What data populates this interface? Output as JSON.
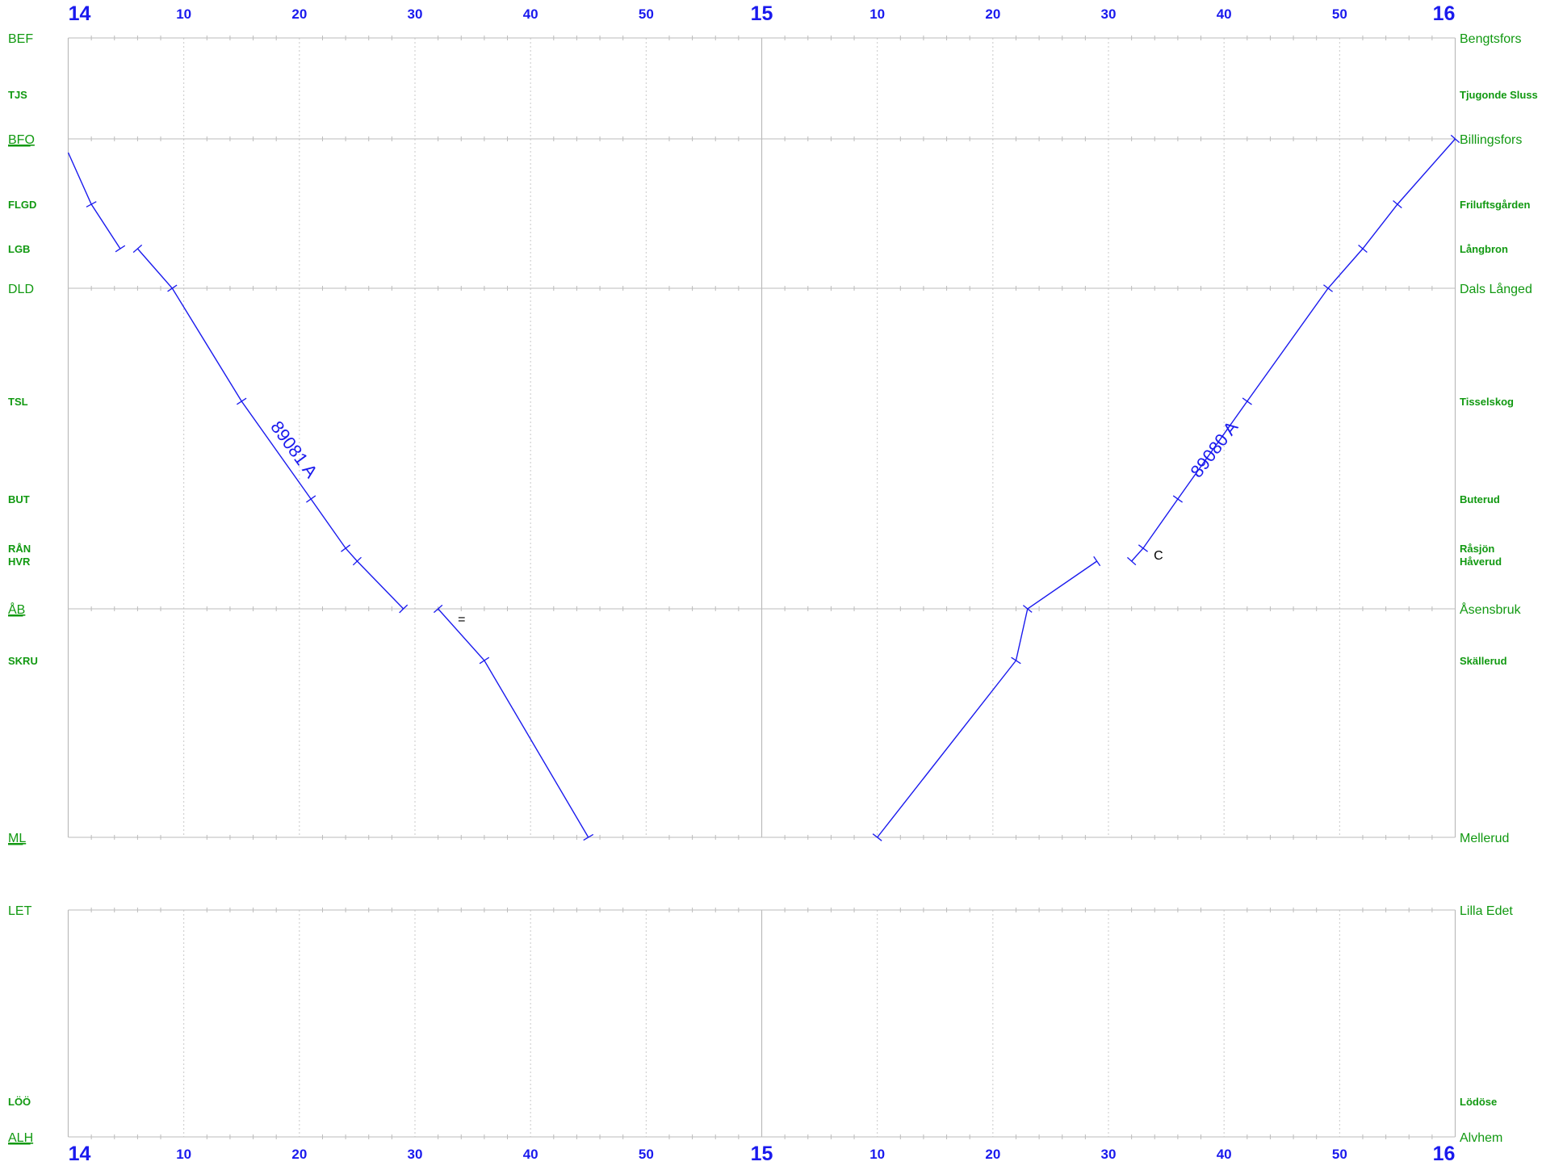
{
  "time_axis": {
    "hour_labels": [
      "14",
      "15",
      "16"
    ],
    "minute_labels": [
      "10",
      "20",
      "30",
      "40",
      "50"
    ]
  },
  "panels": [
    {
      "stations": [
        {
          "code": "BEF",
          "name": "Bengtsfors",
          "major": true,
          "underline": false
        },
        {
          "code": "TJS",
          "name": "Tjugonde Sluss",
          "major": false,
          "underline": false
        },
        {
          "code": "BFO",
          "name": "Billingsfors",
          "major": true,
          "underline": true
        },
        {
          "code": "FLGD",
          "name": "Friluftsgården",
          "major": false,
          "underline": false
        },
        {
          "code": "LGB",
          "name": "Långbron",
          "major": false,
          "underline": false
        },
        {
          "code": "DLD",
          "name": "Dals Långed",
          "major": true,
          "underline": false
        },
        {
          "code": "TSL",
          "name": "Tisselskog",
          "major": false,
          "underline": false
        },
        {
          "code": "BUT",
          "name": "Buterud",
          "major": false,
          "underline": false
        },
        {
          "code": "RÅN",
          "name": "Råsjön",
          "major": false,
          "underline": false
        },
        {
          "code": "HVR",
          "name": "Håverud",
          "major": false,
          "underline": false
        },
        {
          "code": "ÅB",
          "name": "Åsensbruk",
          "major": true,
          "underline": true
        },
        {
          "code": "SKRU",
          "name": "Skällerud",
          "major": false,
          "underline": false
        },
        {
          "code": "ML",
          "name": "Mellerud",
          "major": true,
          "underline": true
        }
      ]
    },
    {
      "stations": [
        {
          "code": "LET",
          "name": "Lilla Edet",
          "major": true,
          "underline": false
        },
        {
          "code": "LÖÖ",
          "name": "Lödöse",
          "major": false,
          "underline": false
        },
        {
          "code": "ALH",
          "name": "Alvhem",
          "major": true,
          "underline": true
        }
      ]
    }
  ],
  "trains": [
    {
      "label": "89081 A",
      "color": "#1a1aee",
      "segments": [
        {
          "points": [
            [
              "14:00",
              "BFO+0.21"
            ],
            [
              "14:02",
              "FLGD"
            ],
            [
              "14:04.5",
              "LGB"
            ]
          ]
        },
        {
          "points": [
            [
              "14:06",
              "LGB"
            ],
            [
              "14:09",
              "DLD"
            ],
            [
              "14:15",
              "TSL"
            ],
            [
              "14:21",
              "BUT"
            ],
            [
              "14:24",
              "RÅN"
            ],
            [
              "14:25",
              "HVR"
            ],
            [
              "14:29",
              "ÅB"
            ]
          ]
        },
        {
          "points": [
            [
              "14:32",
              "ÅB"
            ],
            [
              "14:36",
              "SKRU"
            ],
            [
              "14:45",
              "ML"
            ]
          ]
        }
      ]
    },
    {
      "label": "89080 A",
      "color": "#1a1aee",
      "segments": [
        {
          "points": [
            [
              "15:10",
              "ML"
            ],
            [
              "15:22",
              "SKRU"
            ],
            [
              "15:23",
              "ÅB"
            ],
            [
              "15:29",
              "HVR"
            ]
          ]
        },
        {
          "points": [
            [
              "15:32",
              "HVR"
            ],
            [
              "15:33",
              "RÅN"
            ],
            [
              "15:36",
              "BUT"
            ],
            [
              "15:42",
              "TSL"
            ],
            [
              "15:49",
              "DLD"
            ],
            [
              "15:52",
              "LGB"
            ],
            [
              "15:55",
              "FLGD"
            ],
            [
              "16:00",
              "BFO"
            ]
          ]
        }
      ]
    }
  ],
  "notes": [
    {
      "text": "=",
      "at": [
        "14:33.5",
        "ÅB"
      ]
    },
    {
      "text": "C",
      "at": [
        "15:33.5",
        "HVR"
      ]
    }
  ]
}
